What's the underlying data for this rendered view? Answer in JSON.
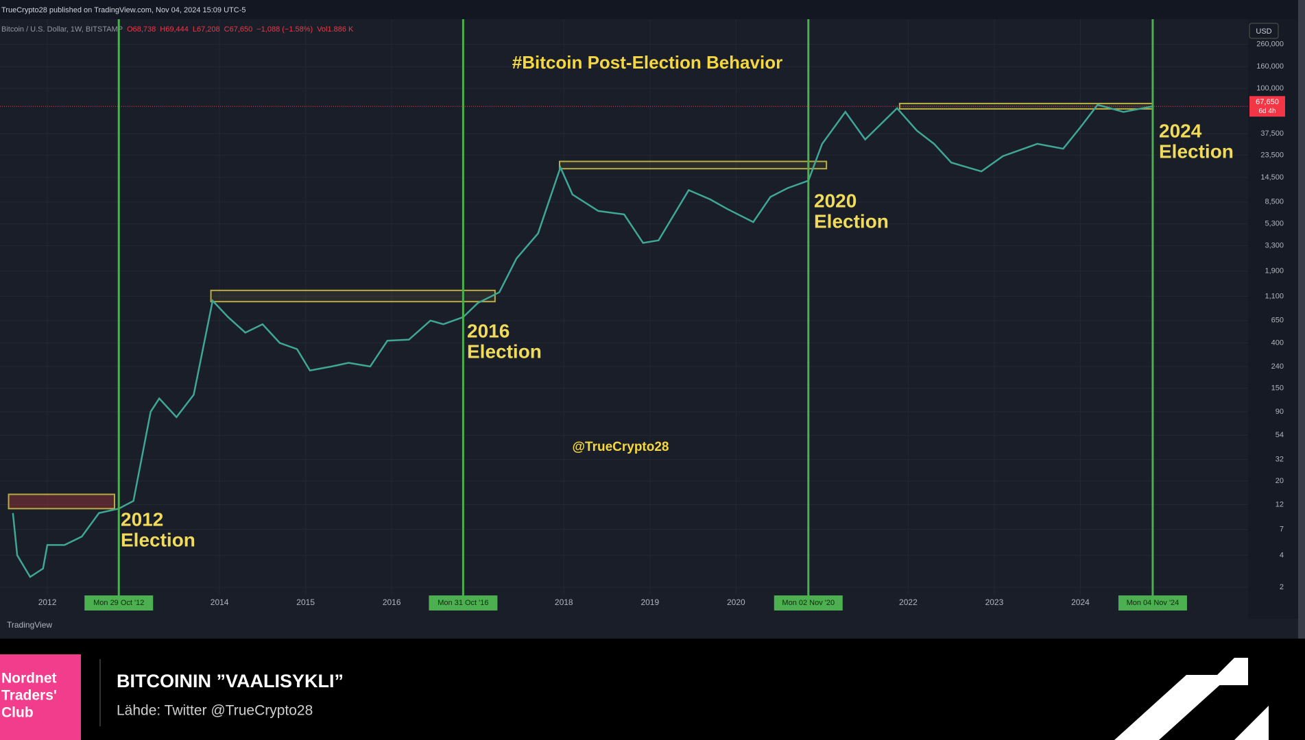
{
  "header": {
    "published": "TrueCrypto28 published on TradingView.com, Nov 04, 2024 15:09 UTC-5",
    "symbol": "Bitcoin / U.S. Dollar, 1W, BITSTAMP",
    "ohlc": [
      "O68,738",
      "H69,444",
      "L67,208",
      "C67,650",
      "−1,088 (−1.58%)",
      "Vol1.886 K"
    ],
    "currency": "USD",
    "brand": "TradingView"
  },
  "chart_data": {
    "type": "line",
    "title": "#Bitcoin Post-Election Behavior",
    "watermark": "@TrueCrypto28",
    "log_y": true,
    "grid": true,
    "color": "#3fa796",
    "x": [
      2011.6,
      2011.65,
      2011.8,
      2011.95,
      2012.0,
      2012.2,
      2012.4,
      2012.6,
      2012.83,
      2013.0,
      2013.2,
      2013.3,
      2013.5,
      2013.7,
      2013.92,
      2014.1,
      2014.3,
      2014.5,
      2014.7,
      2014.9,
      2015.05,
      2015.3,
      2015.5,
      2015.75,
      2015.95,
      2016.2,
      2016.45,
      2016.6,
      2016.83,
      2017.0,
      2017.25,
      2017.45,
      2017.7,
      2017.96,
      2018.1,
      2018.4,
      2018.7,
      2018.92,
      2019.1,
      2019.45,
      2019.7,
      2019.9,
      2020.2,
      2020.4,
      2020.6,
      2020.84,
      2021.0,
      2021.27,
      2021.5,
      2021.87,
      2022.1,
      2022.3,
      2022.5,
      2022.85,
      2023.1,
      2023.5,
      2023.8,
      2024.0,
      2024.2,
      2024.5,
      2024.84
    ],
    "values": [
      10,
      4,
      2.5,
      3,
      5,
      5,
      6,
      10,
      11,
      13,
      90,
      120,
      80,
      130,
      1000,
      700,
      500,
      600,
      400,
      350,
      220,
      240,
      260,
      240,
      420,
      430,
      650,
      600,
      700,
      950,
      1200,
      2500,
      4300,
      18000,
      10000,
      7000,
      6500,
      3500,
      3700,
      11000,
      9000,
      7300,
      5500,
      9500,
      11500,
      13500,
      30000,
      60000,
      33000,
      65000,
      40000,
      30000,
      20000,
      16500,
      23000,
      30000,
      27000,
      43000,
      70000,
      60000,
      67650
    ],
    "xlim": [
      2011.45,
      2025.9
    ],
    "xticks": [
      2012,
      2014,
      2015,
      2016,
      2018,
      2019,
      2020,
      2022,
      2023,
      2024
    ],
    "ylim": [
      1.7,
      300000
    ],
    "yticks": [
      2,
      4,
      7,
      12,
      20,
      32,
      54,
      90,
      150,
      240,
      400,
      650,
      {
        "value": 1100,
        "label": "1,100"
      },
      {
        "value": 1900,
        "label": "1,900"
      },
      {
        "value": 3300,
        "label": "3,300"
      },
      {
        "value": 5300,
        "label": "5,300"
      },
      {
        "value": 8500,
        "label": "8,500"
      },
      {
        "value": 14500,
        "label": "14,500"
      },
      {
        "value": 23500,
        "label": "23,500"
      },
      {
        "value": 37500,
        "label": "37,500"
      },
      {
        "value": 100000,
        "label": "100,000"
      },
      {
        "value": 160000,
        "label": "160,000"
      },
      {
        "value": 260000,
        "label": "260,000"
      }
    ],
    "last_price": {
      "value": 67650,
      "label": "67,650",
      "countdown": "6d 4h"
    },
    "zones": [
      {
        "x": [
          2011.55,
          2012.78
        ],
        "y": [
          11,
          15
        ]
      },
      {
        "x": [
          2013.9,
          2017.2
        ],
        "y": [
          980,
          1250
        ]
      },
      {
        "x": [
          2017.95,
          2021.05
        ],
        "y": [
          17500,
          20500
        ]
      },
      {
        "x": [
          2021.9,
          2024.84
        ],
        "y": [
          64000,
          72000
        ]
      }
    ],
    "events": [
      {
        "x": 2012.83,
        "date_label": "Mon 29 Oct '12",
        "annotation": [
          "2012",
          "Election"
        ]
      },
      {
        "x": 2016.83,
        "date_label": "Mon 31 Oct '16",
        "annotation": [
          "2016",
          "Election"
        ]
      },
      {
        "x": 2020.84,
        "date_label": "Mon 02 Nov '20",
        "annotation": [
          "2020",
          "Election"
        ]
      },
      {
        "x": 2024.84,
        "date_label": "Mon 04 Nov '24",
        "annotation": [
          "2024",
          "Election"
        ]
      }
    ]
  },
  "banner": {
    "brand": [
      "Nordnet",
      "Traders'",
      "Club"
    ],
    "title": "BITCOININ ”VAALISYKLI”",
    "source": "Lähde: Twitter @TrueCrypto28"
  }
}
